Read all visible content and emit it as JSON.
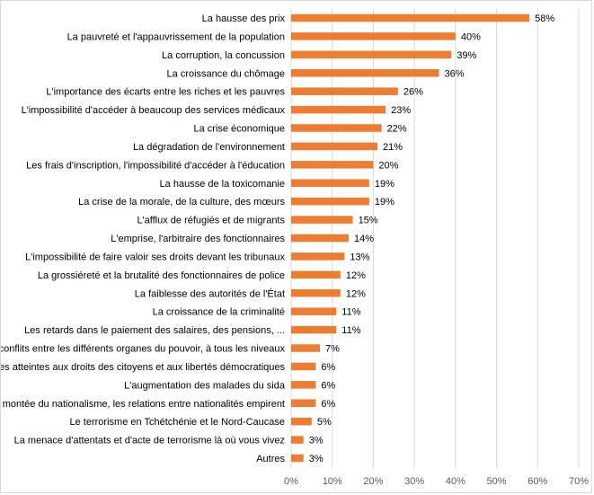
{
  "chart_data": {
    "type": "bar",
    "orientation": "horizontal",
    "title": "",
    "xlabel": "",
    "ylabel": "",
    "xlim": [
      0,
      70
    ],
    "x_ticks": [
      0,
      10,
      20,
      30,
      40,
      50,
      60,
      70
    ],
    "x_tick_labels": [
      "0%",
      "10%",
      "20%",
      "30%",
      "40%",
      "50%",
      "60%",
      "70%"
    ],
    "grid": "vertical",
    "legend": "none",
    "bar_color": "#ED7D31",
    "categories": [
      "La hausse des prix",
      "La pauvreté et l'appauvrissement de la population",
      "La corruption, la concussion",
      "La croissance du chômage",
      "L'importance des écarts entre les riches et les pauvres",
      "L'impossibilité d'accéder à beaucoup des services médicaux",
      "La crise économique",
      "La dégradation de l'environnement",
      "Les frais d'inscription, l'impossibilité d'accéder à l'éducation",
      "La hausse de la toxicomanie",
      "La crise de la morale, de la culture, des mœurs",
      "L'afflux de réfugiés et de migrants",
      "L'emprise, l'arbitraire des fonctionnaires",
      "L'impossibilité de faire valoir ses droits devant les tribunaux",
      "La grossiéreté et la brutalité des fonctionnaires de police",
      "La faiblesse des autorités de l'État",
      "La croissance de la criminalité",
      "Les retards dans le paiement des salaires, des pensions, ...",
      "Les conflits entre les différents organes du pouvoir, à tous les niveaux",
      "Les atteintes aux droits des citoyens et aux libertés démocratiques",
      "L'augmentation des malades du sida",
      "La  montée du nationalisme, les relations entre nationalités empirent",
      "Le terrorisme en Tchétchénie et le Nord-Caucase",
      "La menace d'attentats et d'acte de terrorisme là où vous vivez",
      "Autres"
    ],
    "values": [
      58,
      40,
      39,
      36,
      26,
      23,
      22,
      21,
      20,
      19,
      19,
      15,
      14,
      13,
      12,
      12,
      11,
      11,
      7,
      6,
      6,
      6,
      5,
      3,
      3
    ],
    "value_labels": [
      "58%",
      "40%",
      "39%",
      "36%",
      "26%",
      "23%",
      "22%",
      "21%",
      "20%",
      "19%",
      "19%",
      "15%",
      "14%",
      "13%",
      "12%",
      "12%",
      "11%",
      "11%",
      "7%",
      "6%",
      "6%",
      "6%",
      "5%",
      "3%",
      "3%"
    ]
  }
}
